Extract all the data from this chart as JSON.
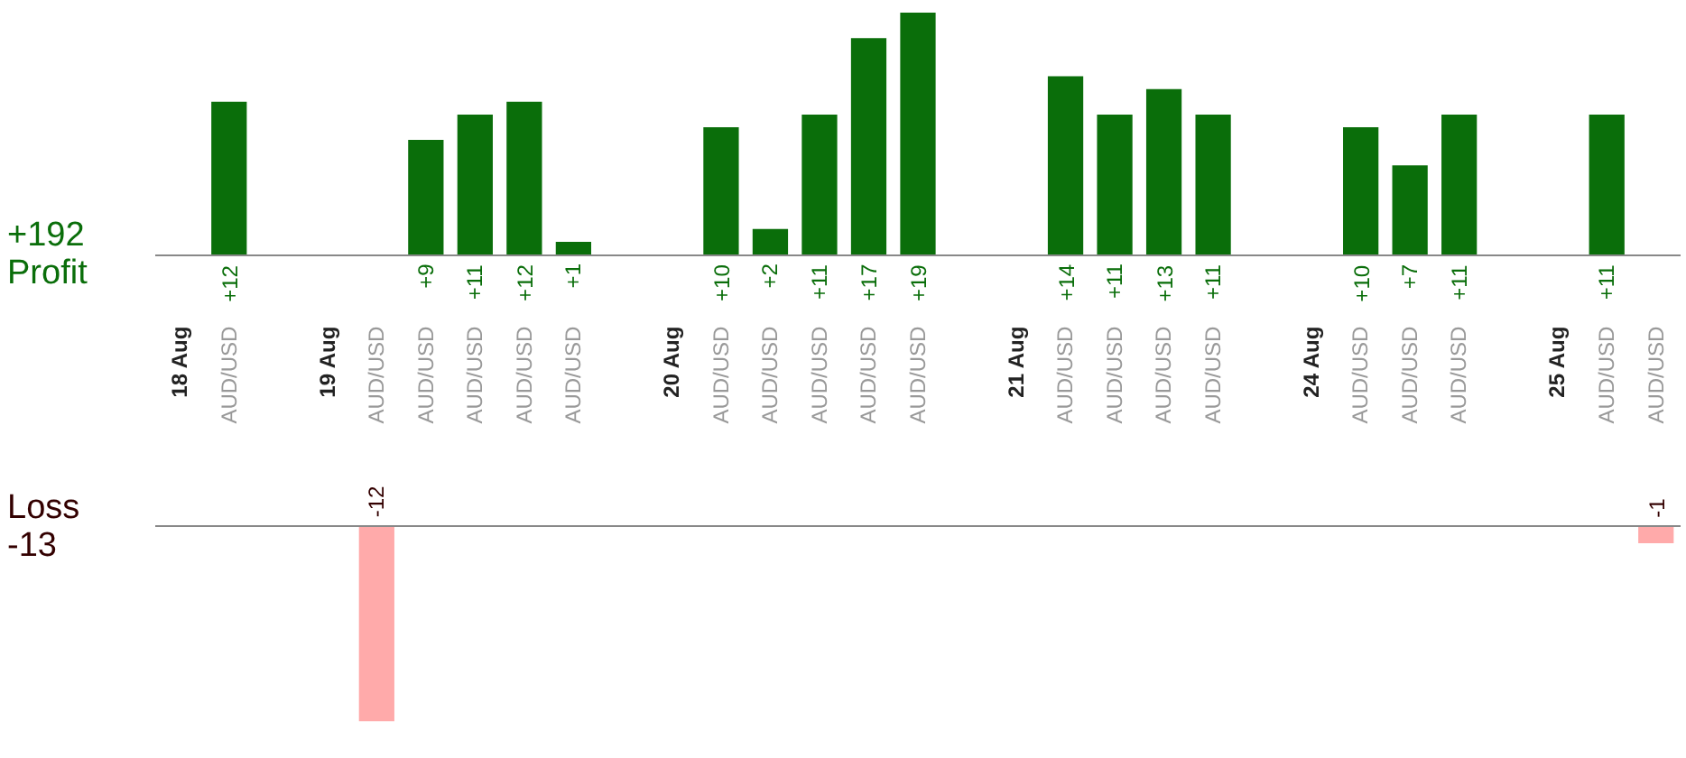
{
  "chart_data": [
    {
      "type": "bar",
      "categories": [
        "18 Aug",
        "AUD/USD",
        null,
        "19 Aug",
        "AUD/USD",
        "AUD/USD",
        "AUD/USD",
        "AUD/USD",
        "AUD/USD",
        null,
        "20 Aug",
        "AUD/USD",
        "AUD/USD",
        "AUD/USD",
        "AUD/USD",
        "AUD/USD",
        null,
        "21 Aug",
        "AUD/USD",
        "AUD/USD",
        "AUD/USD",
        "AUD/USD",
        null,
        "24 Aug",
        "AUD/USD",
        "AUD/USD",
        "AUD/USD",
        null,
        "25 Aug",
        "AUD/USD",
        "AUD/USD"
      ],
      "values": [
        null,
        12,
        null,
        null,
        null,
        9,
        11,
        12,
        1,
        null,
        null,
        10,
        2,
        11,
        17,
        19,
        null,
        null,
        14,
        11,
        13,
        11,
        null,
        null,
        10,
        7,
        11,
        null,
        null,
        11,
        null
      ],
      "value_labels": [
        null,
        "+12",
        null,
        null,
        null,
        "+9",
        "+11",
        "+12",
        "+1",
        null,
        null,
        "+10",
        "+2",
        "+11",
        "+17",
        "+19",
        null,
        null,
        "+14",
        "+11",
        "+13",
        "+11",
        null,
        null,
        "+10",
        "+7",
        "+11",
        null,
        null,
        "+11",
        null
      ],
      "color": "#0a6e0a",
      "ylim": [
        0,
        20
      ],
      "tick_labels": "x",
      "annotations": [
        "+192",
        "Profit"
      ]
    },
    {
      "type": "bar",
      "categories": [
        "18 Aug",
        "AUD/USD",
        null,
        "19 Aug",
        "AUD/USD",
        "AUD/USD",
        "AUD/USD",
        "AUD/USD",
        "AUD/USD",
        null,
        "20 Aug",
        "AUD/USD",
        "AUD/USD",
        "AUD/USD",
        "AUD/USD",
        "AUD/USD",
        null,
        "21 Aug",
        "AUD/USD",
        "AUD/USD",
        "AUD/USD",
        "AUD/USD",
        null,
        "24 Aug",
        "AUD/USD",
        "AUD/USD",
        "AUD/USD",
        null,
        "25 Aug",
        "AUD/USD",
        "AUD/USD"
      ],
      "values": [
        null,
        null,
        null,
        null,
        -12,
        null,
        null,
        null,
        null,
        null,
        null,
        null,
        null,
        null,
        null,
        null,
        null,
        null,
        null,
        null,
        null,
        null,
        null,
        null,
        null,
        null,
        null,
        null,
        null,
        null,
        -1
      ],
      "value_labels": [
        null,
        null,
        null,
        null,
        "-12",
        null,
        null,
        null,
        null,
        null,
        null,
        null,
        null,
        null,
        null,
        null,
        null,
        null,
        null,
        null,
        null,
        null,
        null,
        null,
        null,
        null,
        null,
        null,
        null,
        null,
        "-1"
      ],
      "color": "#ffaaaa",
      "tick_labels": false,
      "annotations": [
        "Loss",
        "-13"
      ]
    }
  ]
}
